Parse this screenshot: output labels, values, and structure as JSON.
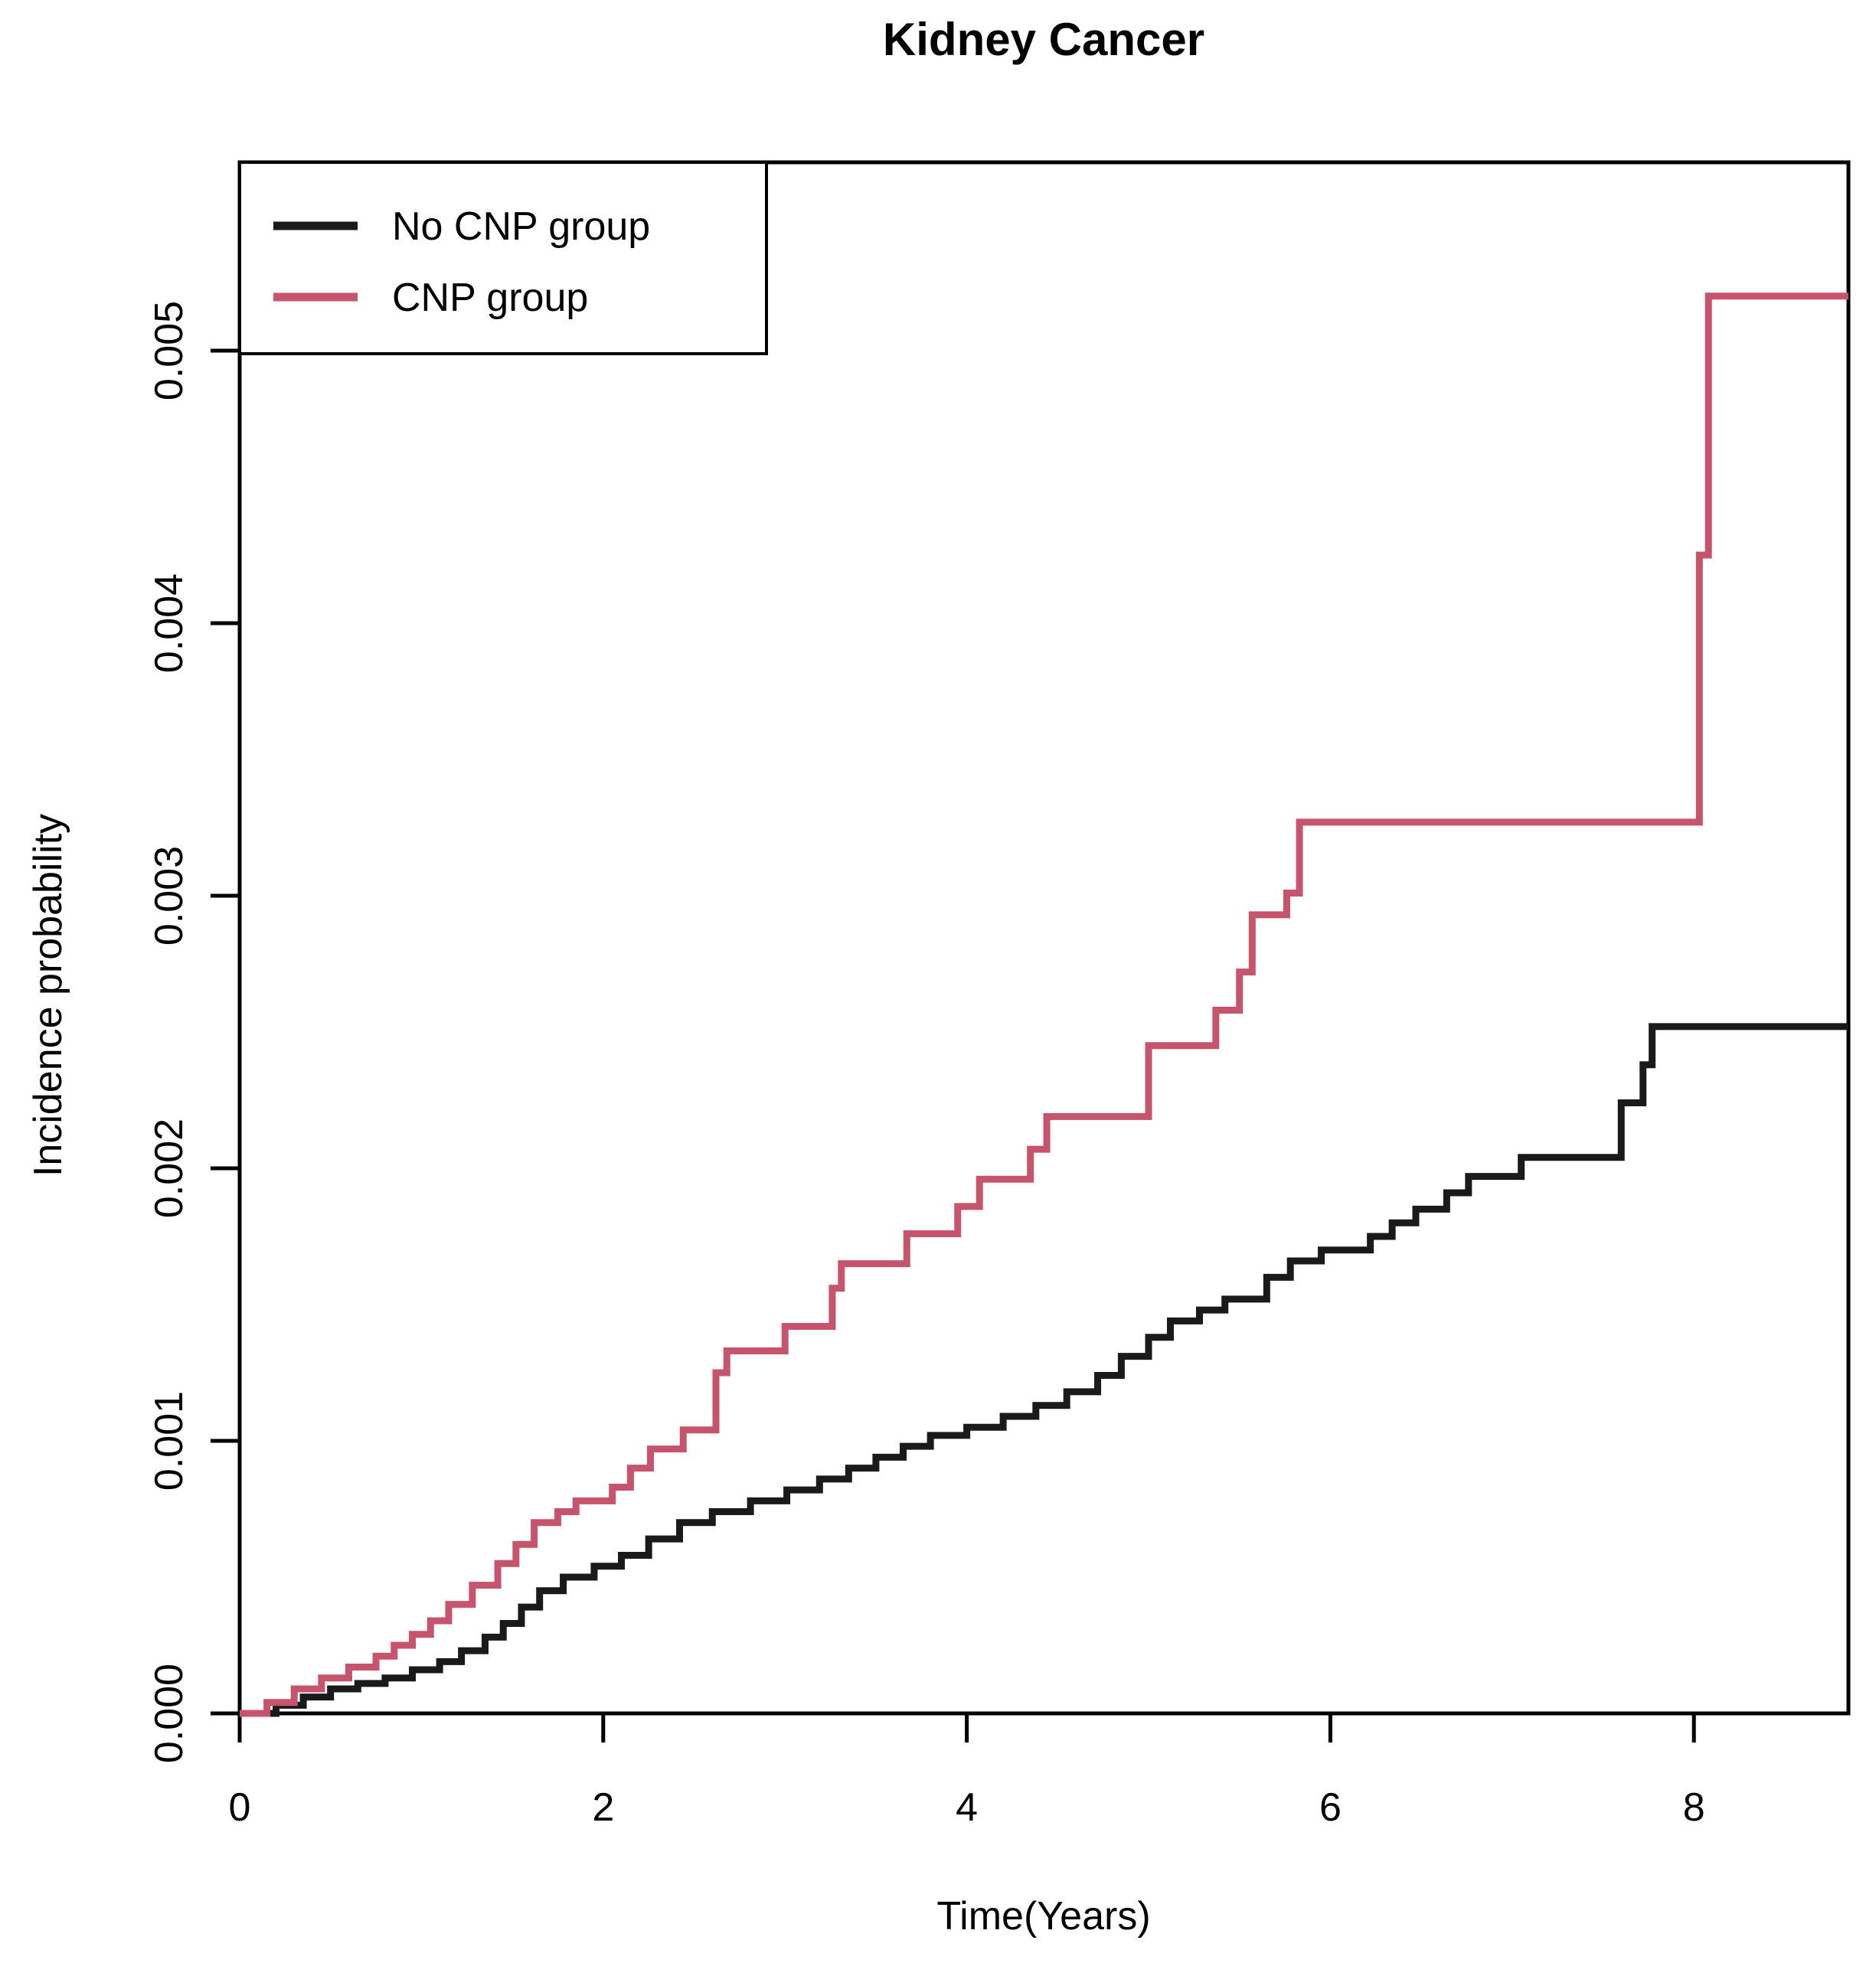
{
  "title": "Kidney Cancer",
  "colors": {
    "no_cnp": "#1a1a1a",
    "cnp": "#c6546c",
    "frame": "#000000",
    "background": "#ffffff"
  },
  "legend": {
    "entries": [
      {
        "label": "No CNP group",
        "color_key": "no_cnp"
      },
      {
        "label": "CNP group",
        "color_key": "cnp"
      }
    ]
  },
  "chart_data": {
    "type": "line",
    "subtype": "step-cumulative-incidence",
    "title": "Kidney Cancer",
    "xlabel": "Time(Years)",
    "ylabel": "Incidence probability",
    "xlim": [
      0,
      8.85
    ],
    "ylim": [
      0,
      0.0057
    ],
    "x_ticks": [
      0,
      2,
      4,
      6,
      8
    ],
    "y_ticks": [
      "0.000",
      "0.001",
      "0.002",
      "0.003",
      "0.004",
      "0.005"
    ],
    "grid": false,
    "legend_position": "top-left",
    "series": [
      {
        "name": "No CNP group",
        "color_key": "no_cnp",
        "end_t": 8.85,
        "points": [
          {
            "t": 0.0,
            "v": 0.0
          },
          {
            "t": 0.2,
            "v": 3e-05
          },
          {
            "t": 0.35,
            "v": 6e-05
          },
          {
            "t": 0.5,
            "v": 9e-05
          },
          {
            "t": 0.65,
            "v": 0.00011
          },
          {
            "t": 0.8,
            "v": 0.00013
          },
          {
            "t": 0.95,
            "v": 0.00016
          },
          {
            "t": 1.1,
            "v": 0.00019
          },
          {
            "t": 1.22,
            "v": 0.00023
          },
          {
            "t": 1.35,
            "v": 0.00028
          },
          {
            "t": 1.45,
            "v": 0.00033
          },
          {
            "t": 1.55,
            "v": 0.00039
          },
          {
            "t": 1.65,
            "v": 0.00045
          },
          {
            "t": 1.78,
            "v": 0.0005
          },
          {
            "t": 1.95,
            "v": 0.00054
          },
          {
            "t": 2.1,
            "v": 0.00058
          },
          {
            "t": 2.25,
            "v": 0.00064
          },
          {
            "t": 2.42,
            "v": 0.0007
          },
          {
            "t": 2.6,
            "v": 0.00074
          },
          {
            "t": 2.81,
            "v": 0.00078
          },
          {
            "t": 3.01,
            "v": 0.00082
          },
          {
            "t": 3.19,
            "v": 0.00086
          },
          {
            "t": 3.35,
            "v": 0.0009
          },
          {
            "t": 3.5,
            "v": 0.00094
          },
          {
            "t": 3.65,
            "v": 0.00098
          },
          {
            "t": 3.8,
            "v": 0.00102
          },
          {
            "t": 4.0,
            "v": 0.00105
          },
          {
            "t": 4.2,
            "v": 0.00109
          },
          {
            "t": 4.38,
            "v": 0.00113
          },
          {
            "t": 4.55,
            "v": 0.00118
          },
          {
            "t": 4.72,
            "v": 0.00124
          },
          {
            "t": 4.85,
            "v": 0.00131
          },
          {
            "t": 5.0,
            "v": 0.00138
          },
          {
            "t": 5.12,
            "v": 0.00144
          },
          {
            "t": 5.28,
            "v": 0.00148
          },
          {
            "t": 5.42,
            "v": 0.00152
          },
          {
            "t": 5.65,
            "v": 0.0016
          },
          {
            "t": 5.78,
            "v": 0.00166
          },
          {
            "t": 5.95,
            "v": 0.0017
          },
          {
            "t": 6.22,
            "v": 0.00175
          },
          {
            "t": 6.34,
            "v": 0.0018
          },
          {
            "t": 6.47,
            "v": 0.00185
          },
          {
            "t": 6.64,
            "v": 0.00191
          },
          {
            "t": 6.76,
            "v": 0.00197
          },
          {
            "t": 7.05,
            "v": 0.00204
          },
          {
            "t": 7.6,
            "v": 0.00224
          },
          {
            "t": 7.72,
            "v": 0.00238
          },
          {
            "t": 7.77,
            "v": 0.00252
          }
        ]
      },
      {
        "name": "CNP group",
        "color_key": "cnp",
        "end_t": 8.85,
        "points": [
          {
            "t": 0.0,
            "v": 0.0
          },
          {
            "t": 0.15,
            "v": 4e-05
          },
          {
            "t": 0.3,
            "v": 9e-05
          },
          {
            "t": 0.45,
            "v": 0.00013
          },
          {
            "t": 0.6,
            "v": 0.00017
          },
          {
            "t": 0.75,
            "v": 0.00021
          },
          {
            "t": 0.85,
            "v": 0.00025
          },
          {
            "t": 0.95,
            "v": 0.00029
          },
          {
            "t": 1.05,
            "v": 0.00034
          },
          {
            "t": 1.15,
            "v": 0.0004
          },
          {
            "t": 1.28,
            "v": 0.00047
          },
          {
            "t": 1.42,
            "v": 0.00055
          },
          {
            "t": 1.52,
            "v": 0.00062
          },
          {
            "t": 1.62,
            "v": 0.0007
          },
          {
            "t": 1.75,
            "v": 0.00074
          },
          {
            "t": 1.85,
            "v": 0.00078
          },
          {
            "t": 2.05,
            "v": 0.00083
          },
          {
            "t": 2.15,
            "v": 0.0009
          },
          {
            "t": 2.26,
            "v": 0.00097
          },
          {
            "t": 2.44,
            "v": 0.00104
          },
          {
            "t": 2.62,
            "v": 0.00125
          },
          {
            "t": 2.68,
            "v": 0.00133
          },
          {
            "t": 3.0,
            "v": 0.00142
          },
          {
            "t": 3.26,
            "v": 0.00156
          },
          {
            "t": 3.31,
            "v": 0.00165
          },
          {
            "t": 3.67,
            "v": 0.00176
          },
          {
            "t": 3.95,
            "v": 0.00186
          },
          {
            "t": 4.07,
            "v": 0.00196
          },
          {
            "t": 4.35,
            "v": 0.00207
          },
          {
            "t": 4.44,
            "v": 0.00219
          },
          {
            "t": 5.0,
            "v": 0.00245
          },
          {
            "t": 5.37,
            "v": 0.00258
          },
          {
            "t": 5.5,
            "v": 0.00272
          },
          {
            "t": 5.57,
            "v": 0.00293
          },
          {
            "t": 5.76,
            "v": 0.00301
          },
          {
            "t": 5.83,
            "v": 0.00327
          },
          {
            "t": 8.03,
            "v": 0.00425
          },
          {
            "t": 8.08,
            "v": 0.0052
          }
        ]
      }
    ]
  }
}
